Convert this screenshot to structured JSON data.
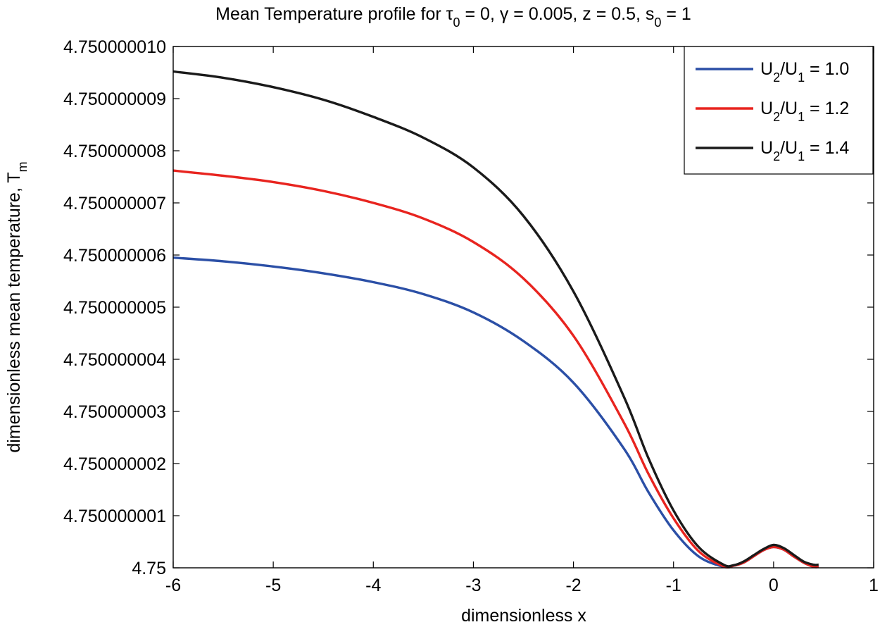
{
  "chart_data": {
    "type": "line",
    "title": {
      "prefix": "Mean Temperature profile for ",
      "parts": [
        {
          "text": "τ"
        },
        {
          "sub": "0"
        },
        {
          "text": " = 0, γ = 0.005, z = 0.5, s"
        },
        {
          "sub": "0"
        },
        {
          "text": " = 1"
        }
      ]
    },
    "xlabel": "dimensionless x",
    "ylabel": {
      "text": "dimensionless mean temperature, T",
      "sub": "m"
    },
    "xlim": [
      -6,
      1
    ],
    "ylim": [
      0,
      10
    ],
    "x_ticks": [
      {
        "value": -6,
        "label": "-6"
      },
      {
        "value": -5,
        "label": "-5"
      },
      {
        "value": -4,
        "label": "-4"
      },
      {
        "value": -3,
        "label": "-3"
      },
      {
        "value": -2,
        "label": "-2"
      },
      {
        "value": -1,
        "label": "-1"
      },
      {
        "value": 0,
        "label": "0"
      },
      {
        "value": 1,
        "label": "1"
      }
    ],
    "y_ticks": [
      {
        "value": 0,
        "label": "4.75"
      },
      {
        "value": 1,
        "label": "4.750000001"
      },
      {
        "value": 2,
        "label": "4.750000002"
      },
      {
        "value": 3,
        "label": "4.750000003"
      },
      {
        "value": 4,
        "label": "4.750000004"
      },
      {
        "value": 5,
        "label": "4.750000005"
      },
      {
        "value": 6,
        "label": "4.750000006"
      },
      {
        "value": 7,
        "label": "4.750000007"
      },
      {
        "value": 8,
        "label": "4.750000008"
      },
      {
        "value": 9,
        "label": "4.750000009"
      },
      {
        "value": 10,
        "label": "4.750000010"
      }
    ],
    "y_unit_note": "y values are in units of 1e-9 above 4.75",
    "legend_location": "top-right",
    "series": [
      {
        "name": "U2/U1 = 1.0",
        "legend": {
          "a": "U",
          "a_sub": "2",
          "b": "/U",
          "b_sub": "1",
          "rest": " = 1.0"
        },
        "color": "#2b4fa6",
        "x": [
          -6.0,
          -5.5,
          -5.0,
          -4.5,
          -4.0,
          -3.5,
          -3.0,
          -2.5,
          -2.0,
          -1.5,
          -1.25,
          -1.0,
          -0.75,
          -0.5,
          -0.4,
          -0.3,
          -0.2,
          -0.1,
          0.0,
          0.1,
          0.2,
          0.3,
          0.4,
          0.45
        ],
        "y": [
          5.95,
          5.88,
          5.78,
          5.65,
          5.48,
          5.25,
          4.9,
          4.35,
          3.55,
          2.3,
          1.45,
          0.72,
          0.22,
          0.02,
          0.04,
          0.1,
          0.22,
          0.34,
          0.4,
          0.35,
          0.22,
          0.1,
          0.02,
          0.02
        ]
      },
      {
        "name": "U2/U1 = 1.2",
        "legend": {
          "a": "U",
          "a_sub": "2",
          "b": "/U",
          "b_sub": "1",
          "rest": " = 1.2"
        },
        "color": "#e8241f",
        "x": [
          -6.0,
          -5.5,
          -5.0,
          -4.5,
          -4.0,
          -3.5,
          -3.0,
          -2.5,
          -2.0,
          -1.5,
          -1.25,
          -1.0,
          -0.75,
          -0.5,
          -0.4,
          -0.3,
          -0.2,
          -0.1,
          0.0,
          0.1,
          0.2,
          0.3,
          0.4,
          0.45
        ],
        "y": [
          7.62,
          7.52,
          7.4,
          7.23,
          7.0,
          6.7,
          6.25,
          5.55,
          4.45,
          2.8,
          1.8,
          0.95,
          0.32,
          0.03,
          0.04,
          0.1,
          0.22,
          0.34,
          0.4,
          0.35,
          0.22,
          0.1,
          0.02,
          0.02
        ]
      },
      {
        "name": "U2/U1 = 1.4",
        "legend": {
          "a": "U",
          "a_sub": "2",
          "b": "/U",
          "b_sub": "1",
          "rest": " = 1.4"
        },
        "color": "#1a1a1a",
        "x": [
          -6.0,
          -5.5,
          -5.0,
          -4.5,
          -4.0,
          -3.5,
          -3.0,
          -2.5,
          -2.0,
          -1.5,
          -1.25,
          -1.0,
          -0.75,
          -0.5,
          -0.4,
          -0.3,
          -0.2,
          -0.1,
          0.0,
          0.1,
          0.2,
          0.3,
          0.4,
          0.45
        ],
        "y": [
          9.52,
          9.4,
          9.22,
          8.98,
          8.65,
          8.25,
          7.68,
          6.75,
          5.3,
          3.3,
          2.1,
          1.1,
          0.4,
          0.06,
          0.05,
          0.12,
          0.24,
          0.36,
          0.44,
          0.38,
          0.25,
          0.12,
          0.06,
          0.06
        ]
      }
    ]
  }
}
